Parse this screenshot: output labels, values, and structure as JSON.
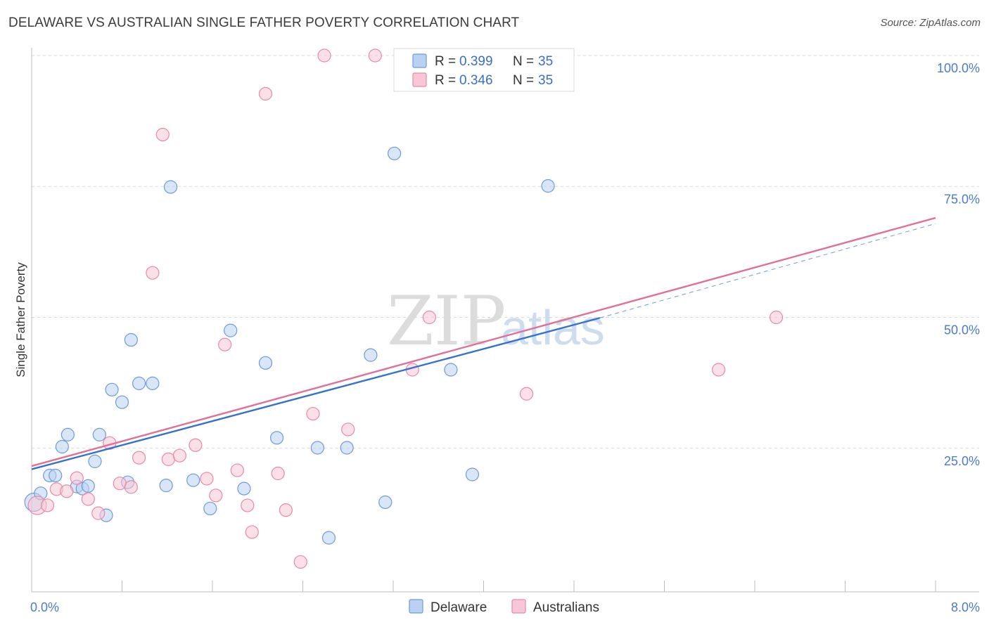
{
  "title": "DELAWARE VS AUSTRALIAN SINGLE FATHER POVERTY CORRELATION CHART",
  "source": "Source: ZipAtlas.com",
  "watermark": {
    "zip": "ZIP",
    "atlas": "atlas"
  },
  "colors": {
    "delaware_fill": "#b9d2f3",
    "delaware_stroke": "#6f9ad8",
    "delaware_line": "#3572cf",
    "australians_fill": "#f8c6d6",
    "australians_stroke": "#e58aa8",
    "australians_line": "#e07098",
    "grid": "#d8d8d8",
    "tick_text": "#4a7cc9"
  },
  "legend": {
    "r_label": "R =",
    "n_label": "N =",
    "delaware": {
      "r": "0.399",
      "n": "35"
    },
    "australians": {
      "r": "0.346",
      "n": "35"
    }
  },
  "chart_data": {
    "type": "scatter",
    "title": "DELAWARE VS AUSTRALIAN SINGLE FATHER POVERTY CORRELATION CHART",
    "xlabel": "",
    "ylabel": "Single Father Poverty",
    "xlim": [
      0,
      8
    ],
    "ylim": [
      0,
      105
    ],
    "x_tick_labels": [
      "0.0%",
      "8.0%"
    ],
    "y_ticks": [
      25,
      50,
      75,
      100
    ],
    "y_tick_labels": [
      "25.0%",
      "50.0%",
      "75.0%",
      "100.0%"
    ],
    "grid": "horizontal dashed",
    "legend_placement": "top-center",
    "series": [
      {
        "name": "Delaware",
        "points": [
          [
            0.02,
            14.7
          ],
          [
            0.08,
            16.4
          ],
          [
            0.16,
            19.8
          ],
          [
            0.21,
            19.8
          ],
          [
            0.27,
            25.3
          ],
          [
            0.32,
            27.6
          ],
          [
            0.4,
            17.7
          ],
          [
            0.45,
            17.3
          ],
          [
            0.5,
            17.8
          ],
          [
            0.56,
            22.5
          ],
          [
            0.6,
            27.6
          ],
          [
            0.66,
            12.2
          ],
          [
            0.71,
            36.2
          ],
          [
            0.8,
            33.8
          ],
          [
            0.85,
            18.5
          ],
          [
            0.88,
            45.7
          ],
          [
            0.95,
            37.4
          ],
          [
            1.07,
            37.4
          ],
          [
            1.19,
            17.9
          ],
          [
            1.23,
            74.9
          ],
          [
            1.43,
            18.9
          ],
          [
            1.58,
            13.5
          ],
          [
            1.76,
            47.5
          ],
          [
            1.88,
            17.3
          ],
          [
            2.07,
            41.3
          ],
          [
            2.17,
            27.0
          ],
          [
            2.53,
            25.1
          ],
          [
            2.63,
            7.9
          ],
          [
            2.79,
            25.1
          ],
          [
            3.0,
            42.8
          ],
          [
            3.13,
            14.7
          ],
          [
            3.21,
            81.3
          ],
          [
            3.71,
            40.0
          ],
          [
            3.9,
            20.0
          ],
          [
            4.57,
            75.1
          ]
        ],
        "trendline": {
          "x": [
            0.0,
            5.03
          ],
          "y": [
            21.0,
            49.9
          ]
        }
      },
      {
        "name": "Australians",
        "points": [
          [
            0.05,
            14.1
          ],
          [
            0.14,
            14.1
          ],
          [
            0.22,
            17.2
          ],
          [
            0.31,
            16.8
          ],
          [
            0.4,
            19.3
          ],
          [
            0.5,
            15.3
          ],
          [
            0.59,
            12.6
          ],
          [
            0.69,
            26.0
          ],
          [
            0.78,
            18.3
          ],
          [
            0.88,
            17.6
          ],
          [
            0.95,
            23.2
          ],
          [
            1.07,
            58.5
          ],
          [
            1.16,
            84.9
          ],
          [
            1.21,
            22.9
          ],
          [
            1.31,
            23.6
          ],
          [
            1.45,
            25.6
          ],
          [
            1.55,
            19.2
          ],
          [
            1.63,
            16.0
          ],
          [
            1.71,
            44.8
          ],
          [
            1.82,
            20.8
          ],
          [
            1.91,
            14.1
          ],
          [
            1.95,
            9.0
          ],
          [
            2.07,
            92.7
          ],
          [
            2.18,
            20.2
          ],
          [
            2.25,
            13.2
          ],
          [
            2.38,
            3.3
          ],
          [
            2.49,
            31.6
          ],
          [
            2.59,
            100.0
          ],
          [
            2.8,
            28.6
          ],
          [
            3.04,
            100.0
          ],
          [
            3.37,
            40.0
          ],
          [
            3.52,
            50.0
          ],
          [
            4.38,
            35.4
          ],
          [
            6.08,
            40.0
          ],
          [
            6.59,
            50.0
          ]
        ],
        "trendline": {
          "x": [
            0.0,
            8.0
          ],
          "y": [
            21.6,
            69.0
          ]
        }
      }
    ],
    "extrapolation": {
      "x": [
        5.03,
        8.0
      ],
      "y": [
        49.9,
        67.9
      ]
    }
  },
  "bottom_legend": {
    "delaware": "Delaware",
    "australians": "Australians"
  }
}
